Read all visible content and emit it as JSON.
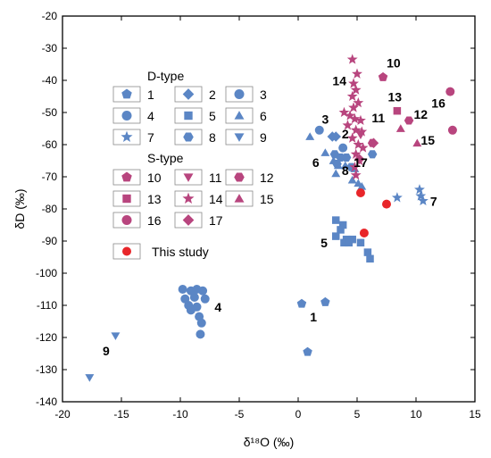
{
  "chart_data": {
    "type": "scatter",
    "xlabel": "δ¹⁸O (‰)",
    "ylabel": "δD (‰)",
    "xlim": [
      -20,
      15
    ],
    "ylim": [
      -140,
      -20
    ],
    "x_ticks": [
      "-20",
      "-15",
      "-10",
      "-5",
      "0",
      "5",
      "10",
      "15"
    ],
    "y_ticks": [
      "-140",
      "-130",
      "-120",
      "-110",
      "-100",
      "-90",
      "-80",
      "-70",
      "-60",
      "-50",
      "-40",
      "-30",
      "-20"
    ],
    "grid": false,
    "legend_position": "left",
    "colors": {
      "d_type": "#5b86c5",
      "s_type": "#b8457e",
      "this_study": "#e8262a"
    },
    "legend": {
      "d_type_title": "D-type",
      "s_type_title": "S-type",
      "this_study_label": "This study",
      "d_entries": [
        {
          "label": "1",
          "marker": "pentagon"
        },
        {
          "label": "2",
          "marker": "diamond"
        },
        {
          "label": "3",
          "marker": "circle"
        },
        {
          "label": "4",
          "marker": "circle"
        },
        {
          "label": "5",
          "marker": "square"
        },
        {
          "label": "6",
          "marker": "triangle-up"
        },
        {
          "label": "7",
          "marker": "star"
        },
        {
          "label": "8",
          "marker": "hexagon"
        },
        {
          "label": "9",
          "marker": "triangle-down"
        }
      ],
      "s_entries": [
        {
          "label": "10",
          "marker": "pentagon"
        },
        {
          "label": "11",
          "marker": "triangle-down"
        },
        {
          "label": "12",
          "marker": "hexagon"
        },
        {
          "label": "13",
          "marker": "square"
        },
        {
          "label": "14",
          "marker": "star"
        },
        {
          "label": "15",
          "marker": "triangle-up"
        },
        {
          "label": "16",
          "marker": "circle"
        },
        {
          "label": "17",
          "marker": "diamond"
        }
      ]
    },
    "series": [
      {
        "name": "1",
        "group": "D",
        "marker": "pentagon",
        "points": [
          [
            0.3,
            -109.5
          ],
          [
            2.3,
            -109
          ],
          [
            0.8,
            -124.5
          ]
        ]
      },
      {
        "name": "2",
        "group": "D",
        "marker": "diamond",
        "points": [
          [
            2.9,
            -57.5
          ],
          [
            3.2,
            -57.5
          ]
        ]
      },
      {
        "name": "3",
        "group": "D",
        "marker": "circle",
        "points": [
          [
            1.8,
            -55.5
          ],
          [
            3.8,
            -61
          ]
        ]
      },
      {
        "name": "4",
        "group": "D",
        "marker": "circle",
        "points": [
          [
            -9.8,
            -105
          ],
          [
            -9.1,
            -105.5
          ],
          [
            -8.6,
            -105
          ],
          [
            -8.1,
            -105.5
          ],
          [
            -9.6,
            -108
          ],
          [
            -8.8,
            -107.5
          ],
          [
            -7.9,
            -108
          ],
          [
            -9.3,
            -110
          ],
          [
            -8.6,
            -110.5
          ],
          [
            -9.1,
            -111.5
          ],
          [
            -8.4,
            -113.5
          ],
          [
            -8.2,
            -115.5
          ],
          [
            -8.3,
            -119
          ]
        ]
      },
      {
        "name": "5",
        "group": "D",
        "marker": "square",
        "points": [
          [
            3.2,
            -83.5
          ],
          [
            3.8,
            -85
          ],
          [
            3.6,
            -86.5
          ],
          [
            3.2,
            -88.5
          ],
          [
            4.1,
            -89.5
          ],
          [
            3.9,
            -90.5
          ],
          [
            4.6,
            -89.5
          ],
          [
            4.3,
            -90.5
          ],
          [
            5.3,
            -90.5
          ],
          [
            5.9,
            -93.5
          ],
          [
            6.1,
            -95.5
          ]
        ]
      },
      {
        "name": "6",
        "group": "D",
        "marker": "triangle-up",
        "points": [
          [
            1,
            -57.5
          ],
          [
            2.3,
            -62.5
          ],
          [
            3,
            -65
          ],
          [
            3.4,
            -66.5
          ],
          [
            3.2,
            -69
          ],
          [
            4,
            -66.5
          ],
          [
            4.8,
            -67.5
          ],
          [
            4.6,
            -71
          ],
          [
            5.1,
            -72
          ],
          [
            5.4,
            -73
          ]
        ]
      },
      {
        "name": "7",
        "group": "D",
        "marker": "star",
        "points": [
          [
            8.4,
            -76.5
          ],
          [
            10.3,
            -74
          ],
          [
            10.4,
            -76
          ],
          [
            10.6,
            -77.5
          ]
        ]
      },
      {
        "name": "8",
        "group": "D",
        "marker": "hexagon",
        "points": [
          [
            3.1,
            -63
          ],
          [
            3.6,
            -64
          ],
          [
            3.3,
            -66
          ],
          [
            4.1,
            -64
          ],
          [
            4.5,
            -67
          ],
          [
            6.3,
            -63
          ]
        ]
      },
      {
        "name": "9",
        "group": "D",
        "marker": "triangle-down",
        "points": [
          [
            -15.5,
            -119.5
          ],
          [
            -17.7,
            -132.5
          ]
        ]
      },
      {
        "name": "10",
        "group": "S",
        "marker": "pentagon",
        "points": [
          [
            7.2,
            -39
          ]
        ]
      },
      {
        "name": "11",
        "group": "S",
        "marker": "triangle-down",
        "points": [
          [
            5.3,
            -57
          ]
        ]
      },
      {
        "name": "12",
        "group": "S",
        "marker": "hexagon",
        "points": [
          [
            6.3,
            -59.5
          ],
          [
            9.4,
            -52.5
          ]
        ]
      },
      {
        "name": "13",
        "group": "S",
        "marker": "square",
        "points": [
          [
            8.4,
            -49.5
          ]
        ]
      },
      {
        "name": "14",
        "group": "S",
        "marker": "star",
        "points": [
          [
            4.6,
            -33.5
          ],
          [
            5,
            -38
          ],
          [
            4.7,
            -41
          ],
          [
            4.9,
            -43
          ],
          [
            4.6,
            -45
          ],
          [
            5.1,
            -47
          ],
          [
            4.7,
            -48.5
          ],
          [
            3.9,
            -50
          ],
          [
            4.4,
            -51
          ],
          [
            4.8,
            -52
          ],
          [
            5.3,
            -52.5
          ],
          [
            4.2,
            -54
          ],
          [
            4.9,
            -55.5
          ],
          [
            5.4,
            -56
          ],
          [
            4.6,
            -58
          ],
          [
            5.1,
            -60
          ],
          [
            5.5,
            -61
          ],
          [
            4.9,
            -63
          ],
          [
            5.2,
            -65
          ],
          [
            4.8,
            -67
          ],
          [
            4.9,
            -69.5
          ]
        ]
      },
      {
        "name": "15",
        "group": "S",
        "marker": "triangle-up",
        "points": [
          [
            10.1,
            -59.5
          ],
          [
            8.7,
            -55
          ]
        ]
      },
      {
        "name": "16",
        "group": "S",
        "marker": "circle",
        "points": [
          [
            12.9,
            -43.5
          ],
          [
            13.1,
            -55.5
          ]
        ]
      },
      {
        "name": "17",
        "group": "S",
        "marker": "diamond",
        "points": [
          [
            6.4,
            -59.5
          ],
          [
            5.2,
            -64.5
          ]
        ]
      },
      {
        "name": "This study",
        "group": "T",
        "marker": "circle",
        "points": [
          [
            5.3,
            -75
          ],
          [
            7.5,
            -78.5
          ],
          [
            5.6,
            -87.5
          ]
        ]
      }
    ],
    "annotations": [
      {
        "text": "1",
        "x": 1.3,
        "y": -115
      },
      {
        "text": "2",
        "x": 4,
        "y": -58
      },
      {
        "text": "3",
        "x": 2.3,
        "y": -53.5
      },
      {
        "text": "4",
        "x": -6.8,
        "y": -112
      },
      {
        "text": "5",
        "x": 2.2,
        "y": -92
      },
      {
        "text": "6",
        "x": 1.5,
        "y": -67
      },
      {
        "text": "7",
        "x": 11.5,
        "y": -79
      },
      {
        "text": "8",
        "x": 4,
        "y": -69.5
      },
      {
        "text": "9",
        "x": -16.3,
        "y": -125.5
      },
      {
        "text": "10",
        "x": 8.1,
        "y": -36
      },
      {
        "text": "11",
        "x": 6.8,
        "y": -53
      },
      {
        "text": "12",
        "x": 10.4,
        "y": -52
      },
      {
        "text": "13",
        "x": 8.2,
        "y": -46.5
      },
      {
        "text": "14",
        "x": 3.5,
        "y": -41.5
      },
      {
        "text": "15",
        "x": 11,
        "y": -60
      },
      {
        "text": "16",
        "x": 11.9,
        "y": -48.5
      },
      {
        "text": "17",
        "x": 5.3,
        "y": -67
      }
    ]
  }
}
